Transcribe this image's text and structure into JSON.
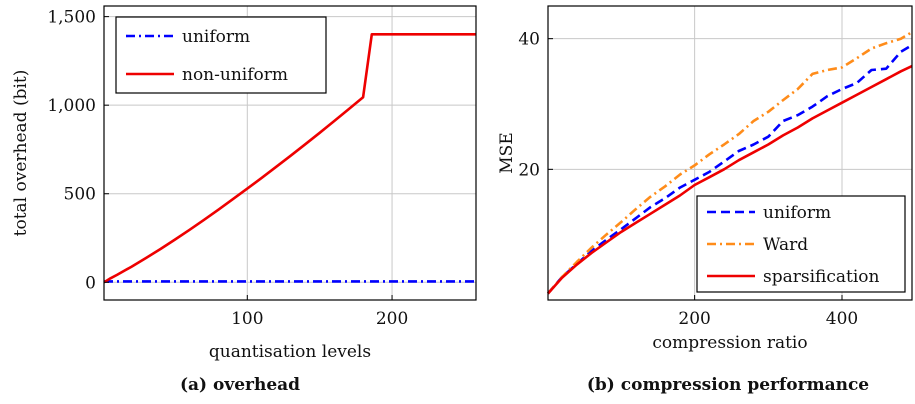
{
  "chart_data": [
    {
      "type": "line",
      "caption": "(a) overhead",
      "xlabel": "quantisation levels",
      "ylabel": "total overhead (bit)",
      "xlim": [
        1,
        258
      ],
      "ylim": [
        -100,
        1560
      ],
      "xticks": [
        {
          "v": 100,
          "label": "100"
        },
        {
          "v": 200,
          "label": "200"
        }
      ],
      "yticks": [
        {
          "v": 0,
          "label": "0"
        },
        {
          "v": 500,
          "label": "500"
        },
        {
          "v": 1000,
          "label": "1,000"
        },
        {
          "v": 1500,
          "label": "1,500"
        }
      ],
      "grid": true,
      "legend_position": "top-left",
      "series": [
        {
          "name": "uniform",
          "color": "#0000ff",
          "dash": "dashdot",
          "x": [
            1,
            258
          ],
          "y": [
            5,
            5
          ]
        },
        {
          "name": "non-uniform",
          "color": "#ee0000",
          "dash": "solid",
          "x": [
            1,
            5,
            10,
            20,
            30,
            40,
            50,
            60,
            70,
            80,
            90,
            100,
            110,
            120,
            130,
            140,
            150,
            160,
            170,
            180,
            186,
            200,
            220,
            240,
            258
          ],
          "y": [
            0,
            20,
            42,
            88,
            137,
            188,
            241,
            296,
            352,
            410,
            469,
            529,
            590,
            652,
            715,
            779,
            844,
            910,
            977,
            1045,
            1400,
            1400,
            1400,
            1400,
            1400
          ]
        }
      ]
    },
    {
      "type": "line",
      "caption": "(b) compression performance",
      "xlabel": "compression ratio",
      "ylabel": "MSE",
      "xlim": [
        1,
        495
      ],
      "ylim": [
        0,
        45
      ],
      "xticks": [
        {
          "v": 200,
          "label": "200"
        },
        {
          "v": 400,
          "label": "400"
        }
      ],
      "yticks": [
        {
          "v": 20,
          "label": "20"
        },
        {
          "v": 40,
          "label": "40"
        }
      ],
      "grid": true,
      "legend_position": "bottom-right",
      "series": [
        {
          "name": "uniform",
          "color": "#0000ff",
          "dash": "dashed",
          "x": [
            1,
            20,
            40,
            60,
            80,
            100,
            120,
            140,
            160,
            180,
            200,
            220,
            240,
            260,
            280,
            300,
            320,
            340,
            360,
            380,
            400,
            420,
            440,
            460,
            480,
            495
          ],
          "y": [
            1,
            3.5,
            5.5,
            7.5,
            9.2,
            10.8,
            12.5,
            14.2,
            15.6,
            17.2,
            18.4,
            19.6,
            21.2,
            22.8,
            23.8,
            25,
            27.4,
            28.3,
            29.6,
            31.2,
            32.3,
            33.2,
            35.2,
            35.4,
            38,
            39
          ]
        },
        {
          "name": "Ward",
          "color": "#ff8c1a",
          "dash": "dashdot",
          "x": [
            1,
            20,
            40,
            60,
            80,
            100,
            120,
            140,
            160,
            180,
            200,
            220,
            240,
            260,
            280,
            300,
            320,
            340,
            360,
            380,
            400,
            420,
            440,
            460,
            480,
            495
          ],
          "y": [
            1,
            3.5,
            5.8,
            8,
            10,
            11.9,
            13.9,
            15.8,
            17.4,
            19.2,
            20.6,
            22.3,
            23.8,
            25.4,
            27.4,
            28.8,
            30.6,
            32.3,
            34.6,
            35.2,
            35.6,
            37,
            38.5,
            39.3,
            40,
            41
          ]
        },
        {
          "name": "sparsification",
          "color": "#ee0000",
          "dash": "solid",
          "x": [
            1,
            20,
            40,
            60,
            80,
            100,
            120,
            140,
            160,
            180,
            200,
            220,
            240,
            260,
            280,
            300,
            320,
            340,
            360,
            380,
            400,
            420,
            440,
            460,
            480,
            495
          ],
          "y": [
            1,
            3.4,
            5.4,
            7.2,
            8.8,
            10.4,
            11.8,
            13.2,
            14.6,
            16,
            17.6,
            18.8,
            20,
            21.4,
            22.6,
            23.8,
            25.2,
            26.4,
            27.8,
            29,
            30.2,
            31.4,
            32.6,
            33.8,
            35,
            35.8
          ]
        }
      ]
    }
  ]
}
